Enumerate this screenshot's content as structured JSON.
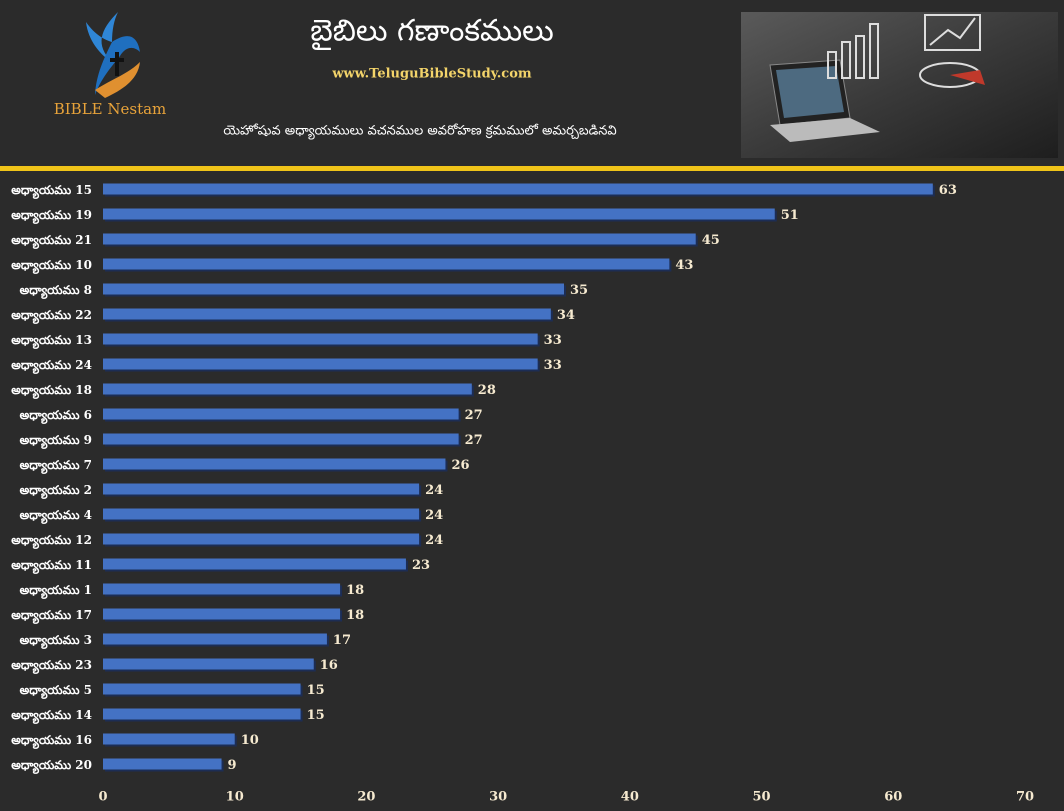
{
  "logo": {
    "text": "BIBLE Nestam"
  },
  "chart_data": {
    "type": "bar",
    "orientation": "horizontal",
    "title": "బైబిలు గణాంకములు",
    "website": "www.TeluguBibleStudy.com",
    "subtitle": "యెహోషువ అధ్యాయములు వచనముల అవరోహణ క్రమములో అమర్చబడినవి",
    "categories": [
      "అధ్యాయము 15",
      "అధ్యాయము 19",
      "అధ్యాయము 21",
      "అధ్యాయము 10",
      "అధ్యాయము 8",
      "అధ్యాయము 22",
      "అధ్యాయము 13",
      "అధ్యాయము 24",
      "అధ్యాయము 18",
      "అధ్యాయము 6",
      "అధ్యాయము 9",
      "అధ్యాయము 7",
      "అధ్యాయము 2",
      "అధ్యాయము 4",
      "అధ్యాయము 12",
      "అధ్యాయము 11",
      "అధ్యాయము 1",
      "అధ్యాయము 17",
      "అధ్యాయము 3",
      "అధ్యాయము 23",
      "అధ్యాయము 5",
      "అధ్యాయము 14",
      "అధ్యాయము 16",
      "అధ్యాయము 20"
    ],
    "values": [
      63,
      51,
      45,
      43,
      35,
      34,
      33,
      33,
      28,
      27,
      27,
      26,
      24,
      24,
      24,
      23,
      18,
      18,
      17,
      16,
      15,
      15,
      10,
      9
    ],
    "color": "#4472c4",
    "xlim": [
      0,
      70
    ],
    "xticks": [
      0,
      10,
      20,
      30,
      40,
      50,
      60,
      70
    ],
    "grid": false
  }
}
